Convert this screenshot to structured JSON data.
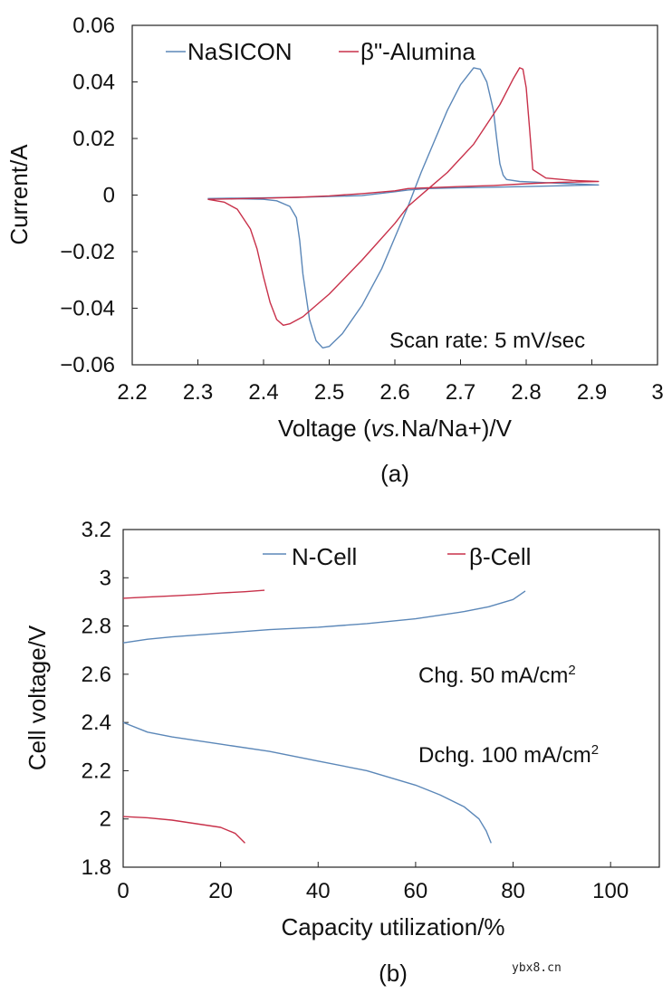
{
  "chart_data": [
    {
      "type": "line",
      "panel": "(a)",
      "title": "",
      "xlabel": "Voltage (vs.Na/Na+)/V",
      "xlabel_parts": [
        "Voltage (",
        "vs.",
        "Na/Na+)/V"
      ],
      "ylabel": "Current/A",
      "xlim": [
        2.2,
        3.0
      ],
      "ylim": [
        -0.06,
        0.06
      ],
      "xticks": [
        2.2,
        2.3,
        2.4,
        2.5,
        2.6,
        2.7,
        2.8,
        2.9,
        3.0
      ],
      "xtick_labels": [
        "2.2",
        "2.3",
        "2.4",
        "2.5",
        "2.6",
        "2.7",
        "2.8",
        "2.9",
        "3"
      ],
      "yticks": [
        0.06,
        0.04,
        0.02,
        0,
        -0.02,
        -0.04,
        -0.06
      ],
      "ytick_labels": [
        "0.06",
        "0.04",
        "0.02",
        "0",
        "−0.02",
        "−0.04",
        "−0.06"
      ],
      "annotation": "Scan rate: 5 mV/sec",
      "legend_placement": "top-left",
      "series": [
        {
          "name": "NaSICON",
          "color": "#5b87b8",
          "x": [
            2.315,
            2.36,
            2.4,
            2.42,
            2.44,
            2.45,
            2.455,
            2.46,
            2.47,
            2.48,
            2.49,
            2.5,
            2.52,
            2.55,
            2.58,
            2.6,
            2.62,
            2.64,
            2.66,
            2.68,
            2.7,
            2.72,
            2.73,
            2.74,
            2.75,
            2.755,
            2.76,
            2.765,
            2.77,
            2.79,
            2.83,
            2.87,
            2.91,
            2.87,
            2.8,
            2.75,
            2.7,
            2.65,
            2.62,
            2.6,
            2.55,
            2.5,
            2.45,
            2.42,
            2.4,
            2.36,
            2.315
          ],
          "y": [
            -0.0012,
            -0.0013,
            -0.0015,
            -0.002,
            -0.004,
            -0.008,
            -0.016,
            -0.028,
            -0.044,
            -0.0515,
            -0.054,
            -0.0535,
            -0.049,
            -0.039,
            -0.026,
            -0.015,
            -0.004,
            0.008,
            0.019,
            0.03,
            0.039,
            0.045,
            0.0445,
            0.04,
            0.03,
            0.02,
            0.011,
            0.007,
            0.0055,
            0.0048,
            0.0044,
            0.004,
            0.0036,
            0.0034,
            0.003,
            0.0028,
            0.0026,
            0.0023,
            0.0018,
            0.0012,
            -0.0002,
            -0.0005,
            -0.0008,
            -0.0009,
            -0.001,
            -0.0011,
            -0.0012
          ]
        },
        {
          "name": "β\"-Alumina",
          "color": "#c8314a",
          "x": [
            2.315,
            2.34,
            2.36,
            2.38,
            2.39,
            2.4,
            2.41,
            2.42,
            2.43,
            2.44,
            2.46,
            2.5,
            2.55,
            2.6,
            2.62,
            2.65,
            2.68,
            2.7,
            2.72,
            2.74,
            2.76,
            2.78,
            2.79,
            2.795,
            2.8,
            2.805,
            2.81,
            2.83,
            2.87,
            2.91,
            2.85,
            2.8,
            2.75,
            2.7,
            2.65,
            2.62,
            2.6,
            2.55,
            2.5,
            2.45,
            2.4,
            2.36,
            2.315
          ],
          "y": [
            -0.0015,
            -0.0025,
            -0.005,
            -0.012,
            -0.019,
            -0.029,
            -0.038,
            -0.044,
            -0.046,
            -0.0455,
            -0.043,
            -0.035,
            -0.023,
            -0.01,
            -0.004,
            0.002,
            0.008,
            0.013,
            0.018,
            0.025,
            0.032,
            0.041,
            0.045,
            0.0445,
            0.038,
            0.024,
            0.009,
            0.006,
            0.0052,
            0.0048,
            0.0045,
            0.004,
            0.0034,
            0.003,
            0.0026,
            0.0023,
            0.0015,
            0.0005,
            -0.0003,
            -0.0008,
            -0.0011,
            -0.0013,
            -0.0015
          ]
        }
      ]
    },
    {
      "type": "line",
      "panel": "(b)",
      "title": "",
      "xlabel": "Capacity utilization/%",
      "ylabel": "Cell voltage/V",
      "xlim": [
        0,
        110
      ],
      "ylim": [
        1.8,
        3.2
      ],
      "xticks": [
        0,
        20,
        40,
        60,
        80,
        100
      ],
      "xtick_labels": [
        "0",
        "20",
        "40",
        "60",
        "80",
        "100"
      ],
      "yticks": [
        3.2,
        3.0,
        2.8,
        2.6,
        2.4,
        2.2,
        2.0,
        1.8
      ],
      "ytick_labels": [
        "3.2",
        "3",
        "2.8",
        "2.6",
        "2.4",
        "2.2",
        "2",
        "1.8"
      ],
      "annotations": [
        {
          "text": "Chg. 50 mA/cm",
          "sup": "2"
        },
        {
          "text": "Dchg. 100 mA/cm",
          "sup": "2"
        }
      ],
      "legend_placement": "top",
      "series": [
        {
          "name": "N-Cell",
          "color": "#5b87b8",
          "segments": [
            {
              "label": "charge",
              "x": [
                0,
                5,
                10,
                20,
                30,
                40,
                50,
                60,
                70,
                75,
                80,
                82.5
              ],
              "y": [
                2.73,
                2.745,
                2.755,
                2.77,
                2.785,
                2.795,
                2.81,
                2.83,
                2.86,
                2.88,
                2.91,
                2.945
              ]
            },
            {
              "label": "discharge",
              "x": [
                0,
                5,
                10,
                20,
                30,
                40,
                50,
                60,
                65,
                70,
                73,
                74.5,
                75.5
              ],
              "y": [
                2.4,
                2.36,
                2.34,
                2.31,
                2.28,
                2.24,
                2.2,
                2.14,
                2.1,
                2.05,
                2.0,
                1.95,
                1.9
              ]
            }
          ]
        },
        {
          "name": "β-Cell",
          "color": "#c8314a",
          "segments": [
            {
              "label": "charge",
              "x": [
                0,
                5,
                10,
                15,
                20,
                25,
                29
              ],
              "y": [
                2.915,
                2.92,
                2.925,
                2.93,
                2.937,
                2.942,
                2.948
              ]
            },
            {
              "label": "discharge",
              "x": [
                0,
                5,
                10,
                15,
                20,
                23,
                25
              ],
              "y": [
                2.01,
                2.005,
                1.995,
                1.98,
                1.965,
                1.94,
                1.9
              ]
            }
          ]
        }
      ]
    }
  ],
  "watermark": "ybx8.cn"
}
